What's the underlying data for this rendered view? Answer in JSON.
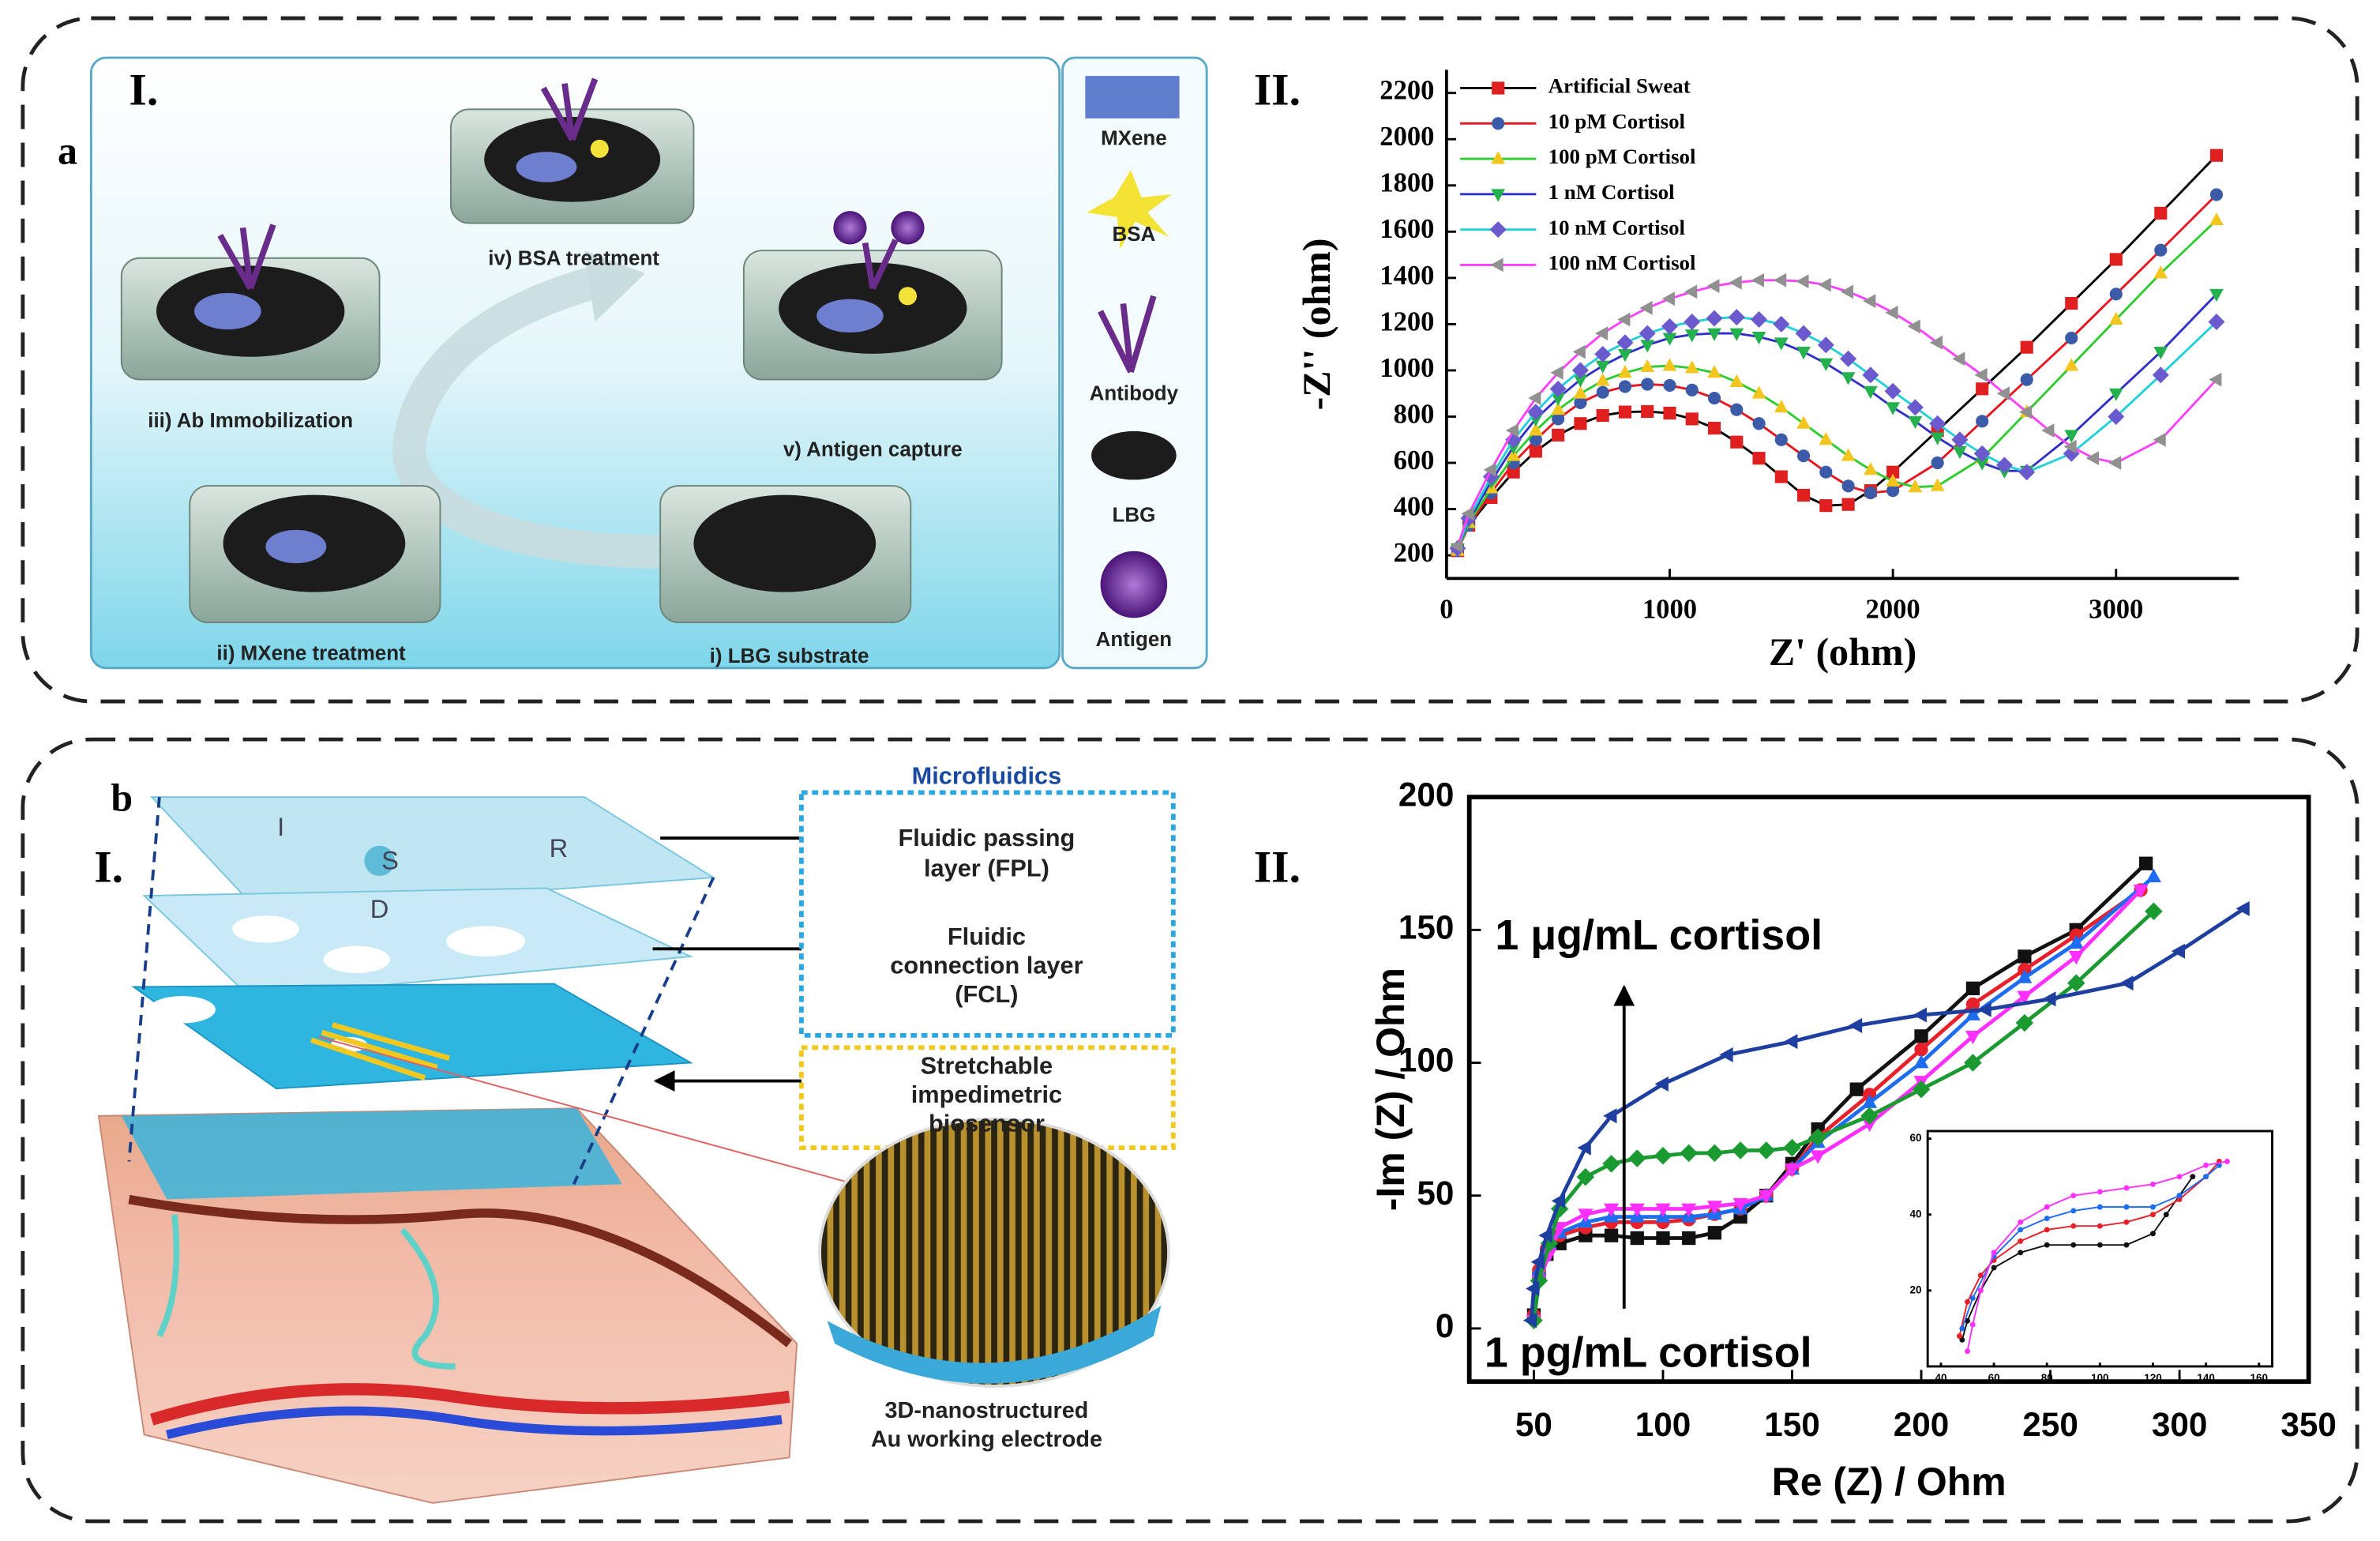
{
  "figure": {
    "panel_labels": [
      "a",
      "b"
    ],
    "sub_labels": [
      "I.",
      "II.",
      "I.",
      "II."
    ],
    "a_steps": [
      "iii) Ab Immobilization",
      "iv) BSA treatment",
      "v) Antigen capture",
      "ii) MXene treatment",
      "i) LBG substrate"
    ],
    "a_legend": [
      "MXene",
      "BSA",
      "Antibody",
      "LBG",
      "Antigen"
    ],
    "b_heading": "Microfluidics",
    "b_layers": [
      [
        "Fluidic passing",
        "layer (FPL)"
      ],
      [
        "Fluidic",
        "connection layer",
        "(FCL)"
      ],
      [
        "Stretchable",
        "impedimetric",
        "biosensor"
      ]
    ],
    "b_electrode": [
      "3D-nanostructured",
      "Au working electrode"
    ],
    "b_ports": [
      "I",
      "S",
      "R",
      "D"
    ]
  },
  "chart_data": [
    {
      "type": "line",
      "xlabel": "Z' (ohm)",
      "ylabel": "-Z'' (ohm)",
      "legend": "upper left",
      "xlim": [
        0,
        3550
      ],
      "xticks": [
        0,
        1000,
        2000,
        3000
      ],
      "ylim": [
        100,
        2300
      ],
      "yticks": [
        200,
        400,
        600,
        800,
        1000,
        1200,
        1400,
        1600,
        1800,
        2000,
        2200
      ],
      "series": [
        {
          "name": "Artificial Sweat",
          "color": "#000000",
          "marker": "square",
          "marker_color": "#e0201e",
          "x": [
            50,
            100,
            200,
            300,
            400,
            500,
            600,
            700,
            800,
            900,
            1000,
            1100,
            1200,
            1300,
            1400,
            1500,
            1600,
            1700,
            1800,
            1900,
            2000,
            2200,
            2400,
            2600,
            2800,
            3000,
            3200,
            3450
          ],
          "values": [
            220,
            330,
            450,
            560,
            650,
            720,
            770,
            805,
            820,
            822,
            815,
            790,
            750,
            690,
            620,
            540,
            460,
            415,
            420,
            480,
            560,
            740,
            920,
            1100,
            1290,
            1480,
            1680,
            1930
          ]
        },
        {
          "name": "10 pM Cortisol",
          "color": "#e8141e",
          "marker": "circle",
          "marker_color": "#3b5ba8",
          "x": [
            50,
            100,
            200,
            300,
            400,
            500,
            600,
            700,
            800,
            900,
            1000,
            1100,
            1200,
            1300,
            1400,
            1500,
            1600,
            1700,
            1800,
            1900,
            2000,
            2200,
            2400,
            2600,
            2800,
            3000,
            3200,
            3450
          ],
          "values": [
            220,
            330,
            470,
            600,
            700,
            790,
            860,
            905,
            930,
            940,
            935,
            915,
            880,
            830,
            770,
            700,
            630,
            560,
            500,
            470,
            480,
            600,
            780,
            960,
            1140,
            1330,
            1520,
            1760
          ]
        },
        {
          "name": "100 pM Cortisol",
          "color": "#2ecc2e",
          "marker": "triangle-up",
          "marker_color": "#f2c61e",
          "x": [
            50,
            100,
            200,
            300,
            400,
            500,
            600,
            700,
            800,
            900,
            1000,
            1100,
            1200,
            1300,
            1400,
            1500,
            1600,
            1700,
            1800,
            1900,
            2000,
            2100,
            2200,
            2400,
            2600,
            2800,
            3000,
            3200,
            3450
          ],
          "values": [
            220,
            340,
            490,
            630,
            740,
            830,
            900,
            955,
            990,
            1015,
            1020,
            1010,
            990,
            950,
            900,
            840,
            770,
            700,
            630,
            570,
            520,
            495,
            500,
            620,
            820,
            1020,
            1220,
            1420,
            1650
          ]
        },
        {
          "name": "1 nM Cortisol",
          "color": "#3030c8",
          "marker": "triangle-down",
          "marker_color": "#22b14c",
          "x": [
            50,
            100,
            200,
            300,
            400,
            500,
            600,
            700,
            800,
            900,
            1000,
            1100,
            1200,
            1300,
            1400,
            1500,
            1600,
            1700,
            1800,
            1900,
            2000,
            2100,
            2200,
            2300,
            2400,
            2500,
            2600,
            2800,
            3000,
            3200,
            3450
          ],
          "values": [
            230,
            350,
            520,
            670,
            790,
            880,
            960,
            1020,
            1070,
            1110,
            1140,
            1155,
            1160,
            1160,
            1145,
            1120,
            1080,
            1030,
            970,
            910,
            840,
            780,
            710,
            650,
            600,
            565,
            565,
            720,
            900,
            1080,
            1330
          ]
        },
        {
          "name": "10 nM Cortisol",
          "color": "#22d0d8",
          "marker": "diamond",
          "marker_color": "#6a5acd",
          "x": [
            50,
            100,
            200,
            300,
            400,
            500,
            600,
            700,
            800,
            900,
            1000,
            1100,
            1200,
            1300,
            1400,
            1500,
            1600,
            1700,
            1800,
            1900,
            2000,
            2100,
            2200,
            2300,
            2400,
            2500,
            2600,
            2800,
            3000,
            3200,
            3450
          ],
          "values": [
            230,
            360,
            540,
            700,
            820,
            920,
            1000,
            1070,
            1120,
            1160,
            1190,
            1210,
            1225,
            1230,
            1220,
            1200,
            1160,
            1110,
            1050,
            980,
            910,
            840,
            770,
            700,
            640,
            590,
            560,
            640,
            800,
            980,
            1210
          ]
        },
        {
          "name": "100 nM Cortisol",
          "color": "#ff40ff",
          "marker": "triangle-left",
          "marker_color": "#909090",
          "x": [
            50,
            100,
            200,
            300,
            400,
            500,
            600,
            700,
            800,
            900,
            1000,
            1100,
            1200,
            1300,
            1400,
            1500,
            1600,
            1700,
            1800,
            1900,
            2000,
            2100,
            2200,
            2300,
            2400,
            2500,
            2600,
            2700,
            2800,
            2900,
            3000,
            3200,
            3450
          ],
          "values": [
            240,
            380,
            570,
            740,
            880,
            990,
            1080,
            1160,
            1220,
            1270,
            1310,
            1340,
            1365,
            1380,
            1390,
            1390,
            1385,
            1370,
            1340,
            1300,
            1250,
            1190,
            1120,
            1050,
            980,
            900,
            820,
            740,
            670,
            620,
            600,
            700,
            960
          ]
        }
      ]
    },
    {
      "type": "line",
      "xlabel": "Re (Z) / Ohm",
      "ylabel": "-Im (Z) / Ohm",
      "annotations": [
        "1 μg/mL cortisol",
        "1 pg/mL cortisol"
      ],
      "xlim": [
        25,
        350
      ],
      "xticks": [
        50,
        100,
        150,
        200,
        250,
        300,
        350
      ],
      "ylim": [
        -20,
        200
      ],
      "yticks": [
        0,
        50,
        100,
        150,
        200
      ],
      "series": [
        {
          "color": "#111111",
          "marker": "square",
          "x": [
            50,
            52,
            55,
            60,
            70,
            80,
            90,
            100,
            110,
            120,
            130,
            140,
            150,
            160,
            175,
            200,
            220,
            240,
            260,
            287
          ],
          "values": [
            5,
            20,
            28,
            32,
            35,
            35,
            34,
            34,
            34,
            36,
            42,
            50,
            62,
            75,
            90,
            110,
            128,
            140,
            150,
            175
          ]
        },
        {
          "color": "#e8202a",
          "marker": "circle",
          "x": [
            50,
            52,
            55,
            60,
            70,
            80,
            90,
            100,
            110,
            120,
            130,
            140,
            150,
            160,
            180,
            200,
            220,
            240,
            260,
            285
          ],
          "values": [
            5,
            22,
            30,
            35,
            38,
            40,
            40,
            40,
            41,
            43,
            45,
            50,
            60,
            72,
            88,
            105,
            122,
            135,
            148,
            165
          ]
        },
        {
          "color": "#1e6cf0",
          "marker": "triangle-up",
          "x": [
            50,
            52,
            56,
            60,
            70,
            80,
            90,
            100,
            110,
            120,
            130,
            140,
            150,
            160,
            180,
            200,
            220,
            240,
            260,
            290
          ],
          "values": [
            5,
            22,
            32,
            36,
            40,
            42,
            42,
            42,
            42,
            43,
            45,
            50,
            60,
            70,
            85,
            100,
            118,
            132,
            145,
            170
          ]
        },
        {
          "color": "#ff30ff",
          "marker": "triangle-down",
          "x": [
            50,
            52,
            56,
            60,
            70,
            80,
            90,
            100,
            110,
            120,
            130,
            140,
            150,
            160,
            180,
            200,
            220,
            240,
            260,
            285
          ],
          "values": [
            3,
            18,
            28,
            38,
            43,
            45,
            45,
            45,
            45,
            46,
            47,
            50,
            60,
            65,
            77,
            93,
            110,
            125,
            140,
            165
          ]
        },
        {
          "color": "#1a9a30",
          "marker": "diamond",
          "x": [
            50,
            52,
            56,
            60,
            70,
            80,
            90,
            100,
            110,
            120,
            130,
            140,
            150,
            160,
            180,
            200,
            220,
            240,
            260,
            290
          ],
          "values": [
            3,
            18,
            32,
            45,
            57,
            62,
            64,
            65,
            66,
            66,
            67,
            67,
            68,
            72,
            80,
            90,
            100,
            115,
            130,
            157
          ]
        },
        {
          "color": "#1f3fa0",
          "marker": "triangle-left",
          "x": [
            49,
            50,
            52,
            55,
            60,
            70,
            80,
            100,
            125,
            150,
            175,
            200,
            225,
            250,
            280,
            300,
            325
          ],
          "values": [
            3,
            15,
            25,
            35,
            48,
            68,
            80,
            92,
            103,
            108,
            114,
            118,
            120,
            124,
            130,
            142,
            158
          ]
        }
      ]
    },
    {
      "type": "line",
      "xlim": [
        35,
        165
      ],
      "xticks": [
        40,
        60,
        80,
        100,
        120,
        140,
        160
      ],
      "ylim": [
        0,
        62
      ],
      "yticks": [
        20,
        40,
        60
      ],
      "series": [
        {
          "color": "#111111",
          "marker": "circle",
          "x": [
            48,
            50,
            55,
            60,
            70,
            80,
            90,
            100,
            110,
            120,
            125,
            130,
            135
          ],
          "values": [
            7,
            12,
            20,
            26,
            30,
            32,
            32,
            32,
            32,
            35,
            40,
            45,
            50
          ]
        },
        {
          "color": "#e8202a",
          "marker": "circle",
          "x": [
            47,
            50,
            55,
            60,
            70,
            80,
            90,
            100,
            110,
            120,
            130,
            140,
            145
          ],
          "values": [
            8,
            17,
            24,
            28,
            33,
            36,
            37,
            37,
            38,
            40,
            44,
            50,
            54
          ]
        },
        {
          "color": "#1e6cf0",
          "marker": "circle",
          "x": [
            48,
            52,
            60,
            70,
            80,
            90,
            100,
            110,
            120,
            130,
            140,
            145
          ],
          "values": [
            10,
            18,
            29,
            36,
            39,
            41,
            42,
            42,
            42,
            45,
            50,
            53
          ]
        },
        {
          "color": "#ff30ff",
          "marker": "circle",
          "x": [
            50,
            52,
            55,
            60,
            70,
            80,
            90,
            100,
            110,
            120,
            130,
            140,
            148
          ],
          "values": [
            4,
            11,
            20,
            30,
            38,
            42,
            45,
            46,
            47,
            48,
            50,
            53,
            54
          ]
        }
      ]
    }
  ]
}
